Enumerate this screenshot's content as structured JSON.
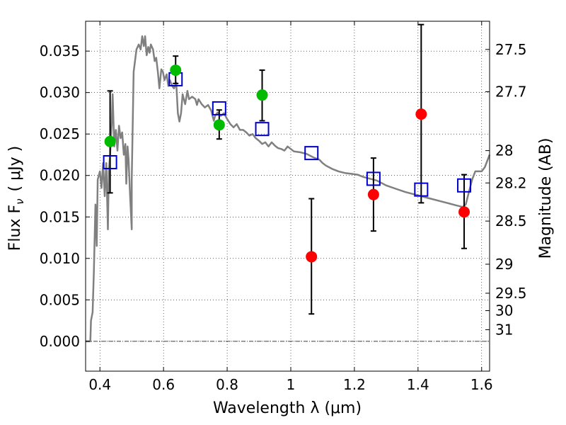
{
  "chart_data": {
    "type": "scatter",
    "xlabel": "Wavelength  λ (μm)",
    "ylabel": "Flux  F",
    "ylabel_sub": "ν",
    "ylabel_unit": "( μJy )",
    "y2label": "Magnitude (AB)",
    "xlim": [
      0.355,
      1.625
    ],
    "ylim": [
      -0.0036,
      0.0386
    ],
    "grid": true,
    "x_ticks": [
      0.4,
      0.6,
      0.8,
      1.0,
      1.2,
      1.4,
      1.6
    ],
    "x_tick_labels": [
      "0.4",
      "0.6",
      "0.8",
      "1",
      "1.2",
      "1.4",
      "1.6"
    ],
    "y_ticks": [
      0.0,
      0.005,
      0.01,
      0.015,
      0.02,
      0.025,
      0.03,
      0.035
    ],
    "y_tick_labels": [
      "0.000",
      "0.005",
      "0.010",
      "0.015",
      "0.020",
      "0.025",
      "0.030",
      "0.035"
    ],
    "y2_ticks": [
      {
        "flux": 0.0352,
        "label": "27.5"
      },
      {
        "flux": 0.0301,
        "label": "27.7"
      },
      {
        "flux": 0.023,
        "label": "28"
      },
      {
        "flux": 0.0191,
        "label": "28.2"
      },
      {
        "flux": 0.0145,
        "label": "28.5"
      },
      {
        "flux": 0.0093,
        "label": "29"
      },
      {
        "flux": 0.0058,
        "label": "29.5"
      },
      {
        "flux": 0.0037,
        "label": "30"
      },
      {
        "flux": 0.0014,
        "label": "31"
      }
    ],
    "series": [
      {
        "kind": "model_sed",
        "color": "#808080",
        "points": [
          [
            0.355,
            0.0
          ],
          [
            0.37,
            0.0
          ],
          [
            0.372,
            0.0025
          ],
          [
            0.377,
            0.0035
          ],
          [
            0.381,
            0.0085
          ],
          [
            0.386,
            0.0165
          ],
          [
            0.39,
            0.0115
          ],
          [
            0.393,
            0.0195
          ],
          [
            0.4,
            0.0205
          ],
          [
            0.405,
            0.0185
          ],
          [
            0.41,
            0.0215
          ],
          [
            0.415,
            0.0175
          ],
          [
            0.42,
            0.0215
          ],
          [
            0.425,
            0.0135
          ],
          [
            0.428,
            0.0205
          ],
          [
            0.432,
            0.0225
          ],
          [
            0.437,
            0.0262
          ],
          [
            0.44,
            0.0298
          ],
          [
            0.445,
            0.0235
          ],
          [
            0.45,
            0.0255
          ],
          [
            0.455,
            0.023
          ],
          [
            0.46,
            0.026
          ],
          [
            0.465,
            0.0245
          ],
          [
            0.47,
            0.0252
          ],
          [
            0.475,
            0.0225
          ],
          [
            0.48,
            0.0238
          ],
          [
            0.483,
            0.019
          ],
          [
            0.487,
            0.0235
          ],
          [
            0.49,
            0.022
          ],
          [
            0.495,
            0.0175
          ],
          [
            0.5,
            0.0135
          ],
          [
            0.5,
            0.0195
          ],
          [
            0.506,
            0.0325
          ],
          [
            0.515,
            0.0352
          ],
          [
            0.522,
            0.0358
          ],
          [
            0.528,
            0.0352
          ],
          [
            0.533,
            0.0368
          ],
          [
            0.538,
            0.0356
          ],
          [
            0.542,
            0.0368
          ],
          [
            0.547,
            0.0345
          ],
          [
            0.552,
            0.0355
          ],
          [
            0.556,
            0.0348
          ],
          [
            0.56,
            0.0358
          ],
          [
            0.567,
            0.0352
          ],
          [
            0.572,
            0.0338
          ],
          [
            0.577,
            0.0342
          ],
          [
            0.582,
            0.0325
          ],
          [
            0.587,
            0.0305
          ],
          [
            0.593,
            0.0328
          ],
          [
            0.598,
            0.0325
          ],
          [
            0.603,
            0.0315
          ],
          [
            0.61,
            0.0322
          ],
          [
            0.615,
            0.0308
          ],
          [
            0.62,
            0.0315
          ],
          [
            0.627,
            0.0308
          ],
          [
            0.633,
            0.0305
          ],
          [
            0.64,
            0.0312
          ],
          [
            0.645,
            0.0275
          ],
          [
            0.65,
            0.0265
          ],
          [
            0.655,
            0.0275
          ],
          [
            0.66,
            0.0298
          ],
          [
            0.668,
            0.0286
          ],
          [
            0.675,
            0.0302
          ],
          [
            0.68,
            0.0292
          ],
          [
            0.69,
            0.0295
          ],
          [
            0.7,
            0.0292
          ],
          [
            0.705,
            0.0285
          ],
          [
            0.71,
            0.0292
          ],
          [
            0.72,
            0.0286
          ],
          [
            0.73,
            0.0282
          ],
          [
            0.74,
            0.0285
          ],
          [
            0.75,
            0.0278
          ],
          [
            0.758,
            0.0266
          ],
          [
            0.762,
            0.0272
          ],
          [
            0.77,
            0.0276
          ],
          [
            0.78,
            0.0272
          ],
          [
            0.79,
            0.0275
          ],
          [
            0.8,
            0.0268
          ],
          [
            0.81,
            0.0262
          ],
          [
            0.82,
            0.0258
          ],
          [
            0.83,
            0.0262
          ],
          [
            0.84,
            0.0255
          ],
          [
            0.85,
            0.0255
          ],
          [
            0.86,
            0.0252
          ],
          [
            0.87,
            0.0248
          ],
          [
            0.88,
            0.025
          ],
          [
            0.89,
            0.0245
          ],
          [
            0.9,
            0.0242
          ],
          [
            0.91,
            0.0238
          ],
          [
            0.92,
            0.024
          ],
          [
            0.93,
            0.0235
          ],
          [
            0.94,
            0.024
          ],
          [
            0.95,
            0.0236
          ],
          [
            0.96,
            0.0233
          ],
          [
            0.97,
            0.0232
          ],
          [
            0.98,
            0.023
          ],
          [
            0.99,
            0.0235
          ],
          [
            1.0,
            0.0232
          ],
          [
            1.01,
            0.0229
          ],
          [
            1.03,
            0.0228
          ],
          [
            1.05,
            0.0226
          ],
          [
            1.07,
            0.0222
          ],
          [
            1.09,
            0.0219
          ],
          [
            1.1,
            0.0215
          ],
          [
            1.11,
            0.0212
          ],
          [
            1.13,
            0.0208
          ],
          [
            1.15,
            0.0205
          ],
          [
            1.17,
            0.0203
          ],
          [
            1.19,
            0.0202
          ],
          [
            1.21,
            0.0201
          ],
          [
            1.23,
            0.0198
          ],
          [
            1.25,
            0.0196
          ],
          [
            1.27,
            0.0194
          ],
          [
            1.3,
            0.0188
          ],
          [
            1.33,
            0.0184
          ],
          [
            1.36,
            0.018
          ],
          [
            1.4,
            0.0176
          ],
          [
            1.44,
            0.0172
          ],
          [
            1.48,
            0.0168
          ],
          [
            1.52,
            0.0164
          ],
          [
            1.54,
            0.0162
          ],
          [
            1.55,
            0.0165
          ],
          [
            1.56,
            0.018
          ],
          [
            1.57,
            0.0195
          ],
          [
            1.58,
            0.0205
          ],
          [
            1.59,
            0.0205
          ],
          [
            1.6,
            0.0205
          ],
          [
            1.61,
            0.021
          ],
          [
            1.625,
            0.0225
          ]
        ]
      },
      {
        "kind": "model_band_flux",
        "marker": "open-square",
        "color": "#0000cc",
        "x": [
          0.432,
          0.638,
          0.775,
          0.91,
          1.065,
          1.26,
          1.41,
          1.545
        ],
        "y": [
          0.0216,
          0.0316,
          0.0281,
          0.0256,
          0.0227,
          0.0196,
          0.0183,
          0.0188
        ]
      },
      {
        "kind": "detection",
        "marker": "filled-circle",
        "color": "#00bb00",
        "x": [
          0.432,
          0.638,
          0.775,
          0.91
        ],
        "y": [
          0.0241,
          0.0327,
          0.0261,
          0.0297
        ],
        "yerr_low": [
          0.0179,
          0.0311,
          0.0244,
          0.0266
        ],
        "yerr_high": [
          0.0302,
          0.0344,
          0.0279,
          0.0327
        ]
      },
      {
        "kind": "low_significance",
        "marker": "filled-circle",
        "color": "#ff0000",
        "x": [
          1.065,
          1.26,
          1.41,
          1.545
        ],
        "y": [
          0.0102,
          0.0177,
          0.0274,
          0.0156
        ],
        "yerr_low": [
          0.0033,
          0.0133,
          0.0167,
          0.0112
        ],
        "yerr_high": [
          0.0172,
          0.0221,
          0.0382,
          0.0201
        ]
      }
    ]
  }
}
